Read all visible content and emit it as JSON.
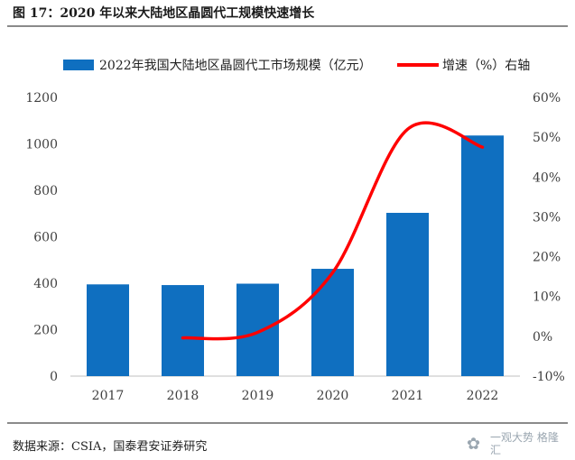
{
  "figure": {
    "title": "图 17：2020 年以来大陆地区晶圆代工规模快速增长",
    "source": "数据来源：CSIA，国泰君安证券研究",
    "watermark_text": "一观大势 格隆汇"
  },
  "colors": {
    "bar": "#0f6fc0",
    "line": "#ff0000",
    "axis_text": "#404040",
    "rule": "#8a8a8a"
  },
  "chart_data": {
    "type": "bar",
    "categories": [
      "2017",
      "2018",
      "2019",
      "2020",
      "2021",
      "2022"
    ],
    "series": [
      {
        "name": "2022年我国大陆地区晶圆代工市场规模（亿元）",
        "type": "bar",
        "axis": "left",
        "values": [
          395,
          392,
          398,
          462,
          703,
          1036
        ]
      },
      {
        "name": "增速（%）右轴",
        "type": "line",
        "axis": "right",
        "values": [
          null,
          -0.4,
          1.0,
          16.0,
          52.0,
          47.5
        ]
      }
    ],
    "left_axis": {
      "ylim": [
        0,
        1200
      ],
      "ticks": [
        "0",
        "200",
        "400",
        "600",
        "800",
        "1000",
        "1200"
      ]
    },
    "right_axis": {
      "ylim": [
        -10,
        60
      ],
      "ticks": [
        "-10%",
        "0%",
        "10%",
        "20%",
        "30%",
        "40%",
        "50%",
        "60%"
      ]
    },
    "legend_position": "top",
    "grid": false
  }
}
